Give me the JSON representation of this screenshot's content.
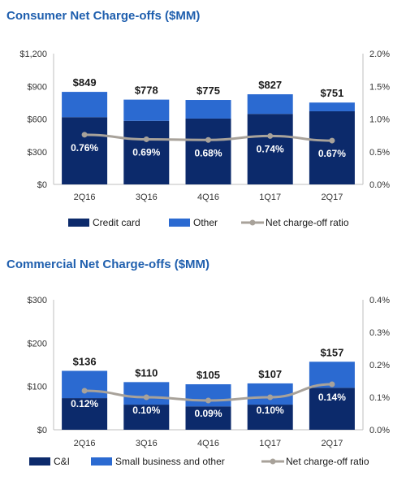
{
  "chart_data": [
    {
      "type": "bar",
      "stacked": true,
      "title": "Consumer Net Charge-offs ($MM)",
      "categories": [
        "2Q16",
        "3Q16",
        "4Q16",
        "1Q17",
        "2Q17"
      ],
      "series": [
        {
          "name": "Credit card",
          "values": [
            617,
            583,
            604,
            647,
            671
          ],
          "color": "#0c2a6b"
        },
        {
          "name": "Other",
          "values": [
            232,
            195,
            171,
            180,
            80
          ],
          "color": "#2b6ad1"
        }
      ],
      "totals": [
        849,
        778,
        775,
        827,
        751
      ],
      "total_labels": [
        "$849",
        "$778",
        "$775",
        "$827",
        "$751"
      ],
      "line": {
        "name": "Net charge-off ratio",
        "values": [
          0.76,
          0.69,
          0.68,
          0.74,
          0.67
        ],
        "labels": [
          "0.76%",
          "0.69%",
          "0.68%",
          "0.74%",
          "0.67%"
        ],
        "color": "#a8a29a"
      },
      "ylim": [
        0,
        1200
      ],
      "y_ticks": [
        "$0",
        "$300",
        "$600",
        "$900",
        "$1,200"
      ],
      "y2lim": [
        0,
        2.0
      ],
      "y2_ticks": [
        "0.0%",
        "0.5%",
        "1.0%",
        "1.5%",
        "2.0%"
      ],
      "grid": false,
      "legend": "bottom"
    },
    {
      "type": "bar",
      "stacked": true,
      "title": "Commercial Net Charge-offs ($MM)",
      "categories": [
        "2Q16",
        "3Q16",
        "4Q16",
        "1Q17",
        "2Q17"
      ],
      "series": [
        {
          "name": "C&I",
          "values": [
            73,
            58,
            54,
            58,
            97
          ],
          "color": "#0c2a6b"
        },
        {
          "name": "Small business and other",
          "values": [
            63,
            52,
            51,
            49,
            60
          ],
          "color": "#2b6ad1"
        }
      ],
      "totals": [
        136,
        110,
        105,
        107,
        157
      ],
      "total_labels": [
        "$136",
        "$110",
        "$105",
        "$107",
        "$157"
      ],
      "line": {
        "name": "Net charge-off ratio",
        "values": [
          0.12,
          0.1,
          0.09,
          0.1,
          0.14
        ],
        "labels": [
          "0.12%",
          "0.10%",
          "0.09%",
          "0.10%",
          "0.14%"
        ],
        "color": "#a8a29a"
      },
      "ylim": [
        0,
        300
      ],
      "y_ticks": [
        "$0",
        "$100",
        "$200",
        "$300"
      ],
      "y2lim": [
        0,
        0.4
      ],
      "y2_ticks": [
        "0.0%",
        "0.1%",
        "0.2%",
        "0.3%",
        "0.4%"
      ],
      "grid": false,
      "legend": "bottom"
    }
  ]
}
